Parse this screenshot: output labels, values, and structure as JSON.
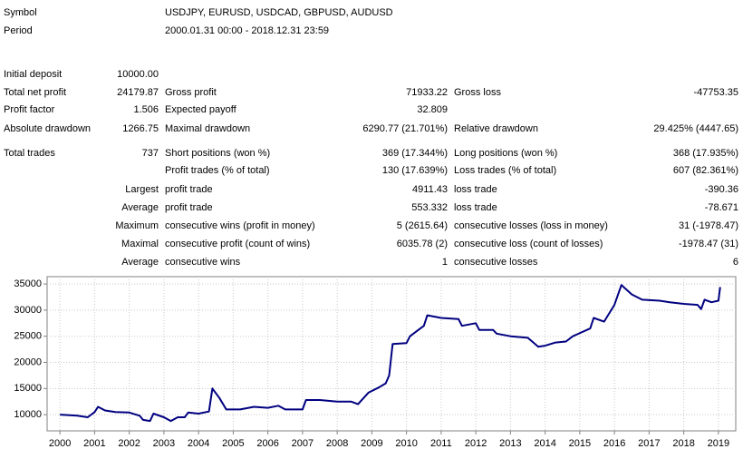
{
  "header": {
    "rows": [
      {
        "label": "Symbol",
        "value": "USDJPY, EURUSD, USDCAD, GBPUSD, AUDUSD"
      },
      {
        "label": "Period",
        "value": "2000.01.31 00:00 - 2018.12.31 23:59"
      }
    ]
  },
  "report": {
    "rows": [
      {
        "label1": "Initial deposit",
        "value1": "10000.00"
      },
      {
        "label1": "Total net profit",
        "value1": "24179.87",
        "label2": "Gross profit",
        "value2": "71933.22",
        "label3": "Gross loss",
        "value3": "-47753.35"
      },
      {
        "label1": "Profit factor",
        "value1": "1.506",
        "label2": "Expected payoff",
        "value2": "32.809"
      },
      {
        "label1": "Absolute drawdown",
        "value1": "1266.75",
        "label2": "Maximal drawdown",
        "value2": "6290.77 (21.701%)",
        "label3": "Relative drawdown",
        "value3": "29.425% (4447.65)"
      },
      {
        "label1": "Total trades",
        "value1": "737",
        "label2": "Short positions (won %)",
        "value2": "369 (17.344%)",
        "label3": "Long positions (won %)",
        "value3": "368 (17.935%)"
      },
      {
        "label2": "Profit trades (% of total)",
        "value2": "130 (17.639%)",
        "label3": "Loss trades (% of total)",
        "value3": "607 (82.361%)"
      },
      {
        "prefix": "Largest",
        "label2": "profit trade",
        "value2": "4911.43",
        "label3": "loss trade",
        "value3": "-390.36"
      },
      {
        "prefix": "Average",
        "label2": "profit trade",
        "value2": "553.332",
        "label3": "loss trade",
        "value3": "-78.671"
      },
      {
        "prefix": "Maximum",
        "label2": "consecutive wins (profit in money)",
        "value2": "5 (2615.64)",
        "label3": "consecutive losses (loss in money)",
        "value3": "31 (-1978.47)"
      },
      {
        "prefix": "Maximal",
        "label2": "consecutive profit (count of wins)",
        "value2": "6035.78 (2)",
        "label3": "consecutive loss (count of losses)",
        "value3": "-1978.47 (31)"
      },
      {
        "prefix": "Average",
        "label2": "consecutive wins",
        "value2": "1",
        "label3": "consecutive losses",
        "value3": "6"
      }
    ]
  },
  "chart_data": {
    "type": "line",
    "color": "#000080",
    "grid": true,
    "x": [
      2000.0,
      2000.5,
      2000.8,
      2001.0,
      2001.1,
      2001.3,
      2001.6,
      2002.0,
      2002.3,
      2002.4,
      2002.6,
      2002.7,
      2003.0,
      2003.2,
      2003.4,
      2003.6,
      2003.7,
      2004.0,
      2004.3,
      2004.4,
      2004.6,
      2004.8,
      2005.2,
      2005.6,
      2006.0,
      2006.3,
      2006.5,
      2007.0,
      2007.1,
      2007.5,
      2008.0,
      2008.4,
      2008.6,
      2008.9,
      2009.2,
      2009.4,
      2009.5,
      2009.6,
      2010.0,
      2010.1,
      2010.3,
      2010.5,
      2010.6,
      2011.0,
      2011.5,
      2011.6,
      2012.0,
      2012.1,
      2012.5,
      2012.6,
      2013.0,
      2013.5,
      2013.8,
      2014.0,
      2014.3,
      2014.6,
      2014.8,
      2015.3,
      2015.4,
      2015.7,
      2016.0,
      2016.2,
      2016.5,
      2016.8,
      2017.3,
      2017.6,
      2018.0,
      2018.4,
      2018.5,
      2018.6,
      2018.8,
      2019.0,
      2019.05
    ],
    "values": [
      10000,
      9800,
      9500,
      10500,
      11500,
      10800,
      10500,
      10400,
      9800,
      9000,
      8800,
      10200,
      9500,
      8800,
      9500,
      9500,
      10400,
      10200,
      10600,
      15000,
      13200,
      11000,
      11000,
      11500,
      11300,
      11700,
      11000,
      11000,
      12800,
      12800,
      12500,
      12500,
      12000,
      14200,
      15200,
      16000,
      17500,
      23500,
      23700,
      25000,
      26000,
      27000,
      29000,
      28500,
      28300,
      27000,
      27500,
      26200,
      26200,
      25500,
      25000,
      24700,
      23000,
      23200,
      23800,
      24000,
      25000,
      26500,
      28500,
      27800,
      31000,
      34800,
      33000,
      32000,
      31800,
      31500,
      31200,
      31000,
      30200,
      32000,
      31500,
      31800,
      34400
    ],
    "xlim": [
      1999.63,
      2019.5
    ],
    "ylim": [
      6900,
      36400
    ],
    "xticks": [
      2000,
      2001,
      2002,
      2003,
      2004,
      2005,
      2006,
      2007,
      2008,
      2009,
      2010,
      2011,
      2012,
      2013,
      2014,
      2015,
      2016,
      2017,
      2018,
      2019
    ],
    "yticks": [
      10000,
      15000,
      20000,
      25000,
      30000,
      35000
    ]
  }
}
